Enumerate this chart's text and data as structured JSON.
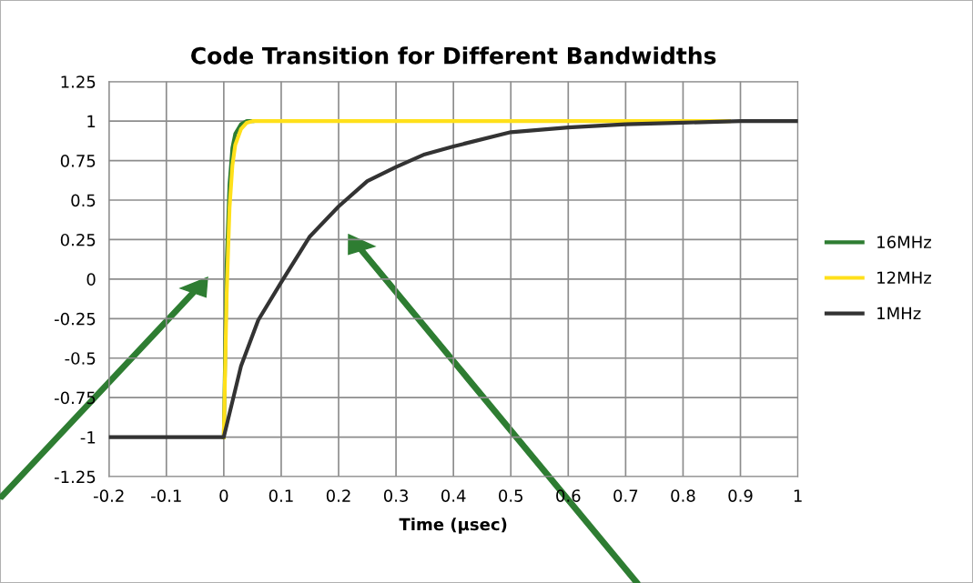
{
  "chart_data": {
    "type": "line",
    "title": "Code Transition for Different Bandwidths",
    "xlabel": "Time (µsec)",
    "xlim": [
      -0.2,
      1
    ],
    "xticks": [
      -0.2,
      -0.1,
      0,
      0.1,
      0.2,
      0.3,
      0.4,
      0.5,
      0.6,
      0.7,
      0.8,
      0.9,
      1
    ],
    "ylim": [
      -1.25,
      1.25
    ],
    "yticks": [
      -1.25,
      -1,
      -0.75,
      -0.5,
      -0.25,
      0,
      0.25,
      0.5,
      0.75,
      1,
      1.25
    ],
    "grid": true,
    "legend": "right",
    "marker": "none",
    "line_style": "solid",
    "series": [
      {
        "name": "16MHz",
        "color": "#2e7d32",
        "x": [
          0,
          0.005,
          0.01,
          0.015,
          0.02,
          0.03,
          0.04,
          0.05
        ],
        "values": [
          -1,
          0.1,
          0.6,
          0.83,
          0.92,
          0.98,
          1,
          1
        ]
      },
      {
        "name": "12MHz",
        "color": "#ffe01a",
        "x": [
          0,
          0.005,
          0.01,
          0.015,
          0.02,
          0.03,
          0.04,
          0.05,
          0.88
        ],
        "values": [
          -1,
          -0.1,
          0.45,
          0.72,
          0.85,
          0.95,
          0.99,
          1,
          1
        ]
      },
      {
        "name": "1MHz",
        "color": "#333333",
        "x": [
          -0.2,
          0,
          0.03,
          0.06,
          0.1,
          0.15,
          0.2,
          0.25,
          0.3,
          0.35,
          0.4,
          0.5,
          0.6,
          0.7,
          0.8,
          0.9,
          1
        ],
        "values": [
          -1,
          -1,
          -0.55,
          -0.26,
          -0.02,
          0.27,
          0.46,
          0.62,
          0.71,
          0.79,
          0.84,
          0.93,
          0.96,
          0.98,
          0.99,
          1,
          1
        ]
      }
    ]
  }
}
